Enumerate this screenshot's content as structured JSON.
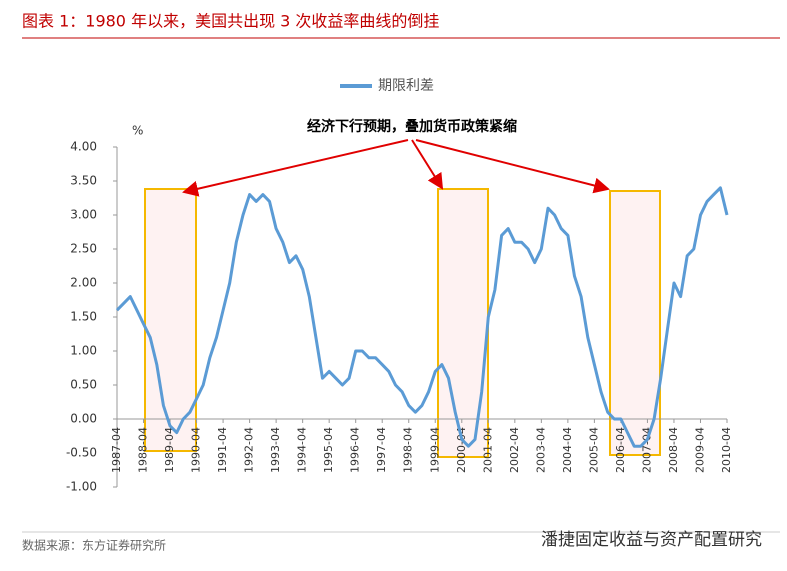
{
  "chart_data": {
    "type": "line",
    "title": "图表 1：1980 年以来，美国共出现 3 次收益率曲线的倒挂",
    "ylabel": "%",
    "annotation": "经济下行预期，叠加货币政策紧缩",
    "source": "数据来源：东方证券研究所",
    "watermark": "潘捷固定收益与资产配置研究",
    "x": [
      "1987-04",
      "1987-07",
      "1987-10",
      "1988-01",
      "1988-04",
      "1988-07",
      "1988-10",
      "1989-01",
      "1989-04",
      "1989-07",
      "1989-10",
      "1990-01",
      "1990-04",
      "1990-07",
      "1990-10",
      "1991-01",
      "1991-04",
      "1991-07",
      "1991-10",
      "1992-01",
      "1992-04",
      "1992-07",
      "1992-10",
      "1993-01",
      "1993-04",
      "1993-07",
      "1993-10",
      "1994-01",
      "1994-04",
      "1994-07",
      "1994-10",
      "1995-01",
      "1995-04",
      "1995-07",
      "1995-10",
      "1996-01",
      "1996-04",
      "1996-07",
      "1996-10",
      "1997-01",
      "1997-04",
      "1997-07",
      "1997-10",
      "1998-01",
      "1998-04",
      "1998-07",
      "1998-10",
      "1999-01",
      "1999-04",
      "1999-07",
      "1999-10",
      "2000-01",
      "2000-04",
      "2000-07",
      "2000-10",
      "2001-01",
      "2001-04",
      "2001-07",
      "2001-10",
      "2002-01",
      "2002-04",
      "2002-07",
      "2002-10",
      "2003-01",
      "2003-04",
      "2003-07",
      "2003-10",
      "2004-01",
      "2004-04",
      "2004-07",
      "2004-10",
      "2005-01",
      "2005-04",
      "2005-07",
      "2005-10",
      "2006-01",
      "2006-04",
      "2006-07",
      "2006-10",
      "2007-01",
      "2007-04",
      "2007-07",
      "2007-10",
      "2008-01",
      "2008-04",
      "2008-07",
      "2008-10",
      "2009-01",
      "2009-04",
      "2009-07",
      "2009-10",
      "2010-01",
      "2010-04"
    ],
    "series": [
      {
        "name": "期限利差",
        "color": "#5b9bd5",
        "values": [
          1.6,
          1.7,
          1.8,
          1.6,
          1.4,
          1.2,
          0.8,
          0.2,
          -0.1,
          -0.2,
          0.0,
          0.1,
          0.3,
          0.5,
          0.9,
          1.2,
          1.6,
          2.0,
          2.6,
          3.0,
          3.3,
          3.2,
          3.3,
          3.2,
          2.8,
          2.6,
          2.3,
          2.4,
          2.2,
          1.8,
          1.2,
          0.6,
          0.7,
          0.6,
          0.5,
          0.6,
          1.0,
          1.0,
          0.9,
          0.9,
          0.8,
          0.7,
          0.5,
          0.4,
          0.2,
          0.1,
          0.2,
          0.4,
          0.7,
          0.8,
          0.6,
          0.1,
          -0.3,
          -0.4,
          -0.3,
          0.4,
          1.5,
          1.9,
          2.7,
          2.8,
          2.6,
          2.6,
          2.5,
          2.3,
          2.5,
          3.1,
          3.0,
          2.8,
          2.7,
          2.1,
          1.8,
          1.2,
          0.8,
          0.4,
          0.1,
          0.0,
          0.0,
          -0.2,
          -0.4,
          -0.4,
          -0.3,
          0.0,
          0.6,
          1.3,
          2.0,
          1.8,
          2.4,
          2.5,
          3.0,
          3.2,
          3.3,
          3.4,
          3.0
        ]
      }
    ],
    "xlim": [
      "1987-04",
      "2010-04"
    ],
    "xticks": [
      "1987-04",
      "1988-04",
      "1989-04",
      "1990-04",
      "1991-04",
      "1992-04",
      "1993-04",
      "1994-04",
      "1995-04",
      "1996-04",
      "1997-04",
      "1998-04",
      "1999-04",
      "2000-04",
      "2001-04",
      "2002-04",
      "2003-04",
      "2004-04",
      "2005-04",
      "2006-04",
      "2007-04",
      "2008-04",
      "2009-04",
      "2010-04"
    ],
    "ylim": [
      -1,
      4
    ],
    "yticks": [
      {
        "value": 4,
        "label": "4.00"
      },
      {
        "value": 3.5,
        "label": "3.50"
      },
      {
        "value": 3,
        "label": "3.00"
      },
      {
        "value": 2.5,
        "label": "2.50"
      },
      {
        "value": 2,
        "label": "2.00"
      },
      {
        "value": 1.5,
        "label": "1.50"
      },
      {
        "value": 1,
        "label": "1.00"
      },
      {
        "value": 0.5,
        "label": "0.50"
      },
      {
        "value": 0,
        "label": "0.00"
      },
      {
        "value": -0.5,
        "label": "-0.50"
      },
      {
        "value": -1,
        "label": "-1.00"
      }
    ],
    "legend": "top"
  }
}
